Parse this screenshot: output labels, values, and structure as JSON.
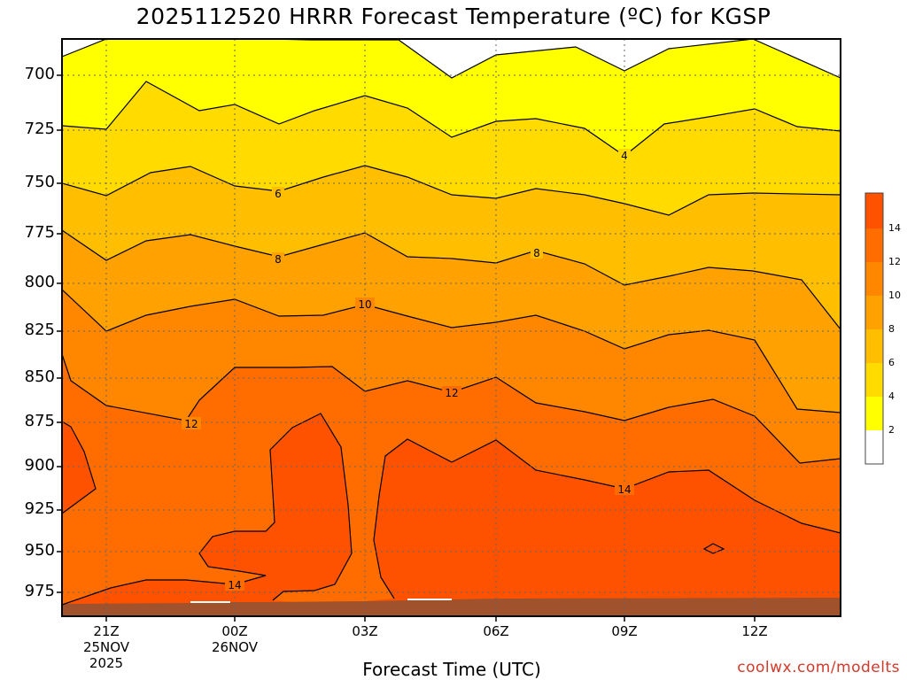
{
  "title": "2025112520 HRRR Forecast Temperature (ºC) for KGSP",
  "credit": "coolwx.com/modelts",
  "chart_data": {
    "type": "heatmap",
    "title": "2025112520 HRRR Forecast Temperature (ºC) for KGSP",
    "xlabel": "Forecast Time (UTC)",
    "ylabel": "",
    "y_ticks": [
      "700",
      "725",
      "750",
      "775",
      "800",
      "825",
      "850",
      "875",
      "900",
      "925",
      "950",
      "975"
    ],
    "x_ticks": [
      {
        "l1": "21Z",
        "l2": "25NOV",
        "l3": "2025"
      },
      {
        "l1": "00Z",
        "l2": "26NOV",
        "l3": ""
      },
      {
        "l1": "03Z",
        "l2": "",
        "l3": ""
      },
      {
        "l1": "06Z",
        "l2": "",
        "l3": ""
      },
      {
        "l1": "09Z",
        "l2": "",
        "l3": ""
      },
      {
        "l1": "12Z",
        "l2": "",
        "l3": ""
      }
    ],
    "grid": true,
    "contour_labels": [
      "4",
      "6",
      "8",
      "8",
      "10",
      "12",
      "12",
      "14",
      "14"
    ],
    "colorbar": {
      "ticks": [
        "2",
        "4",
        "6",
        "8",
        "10",
        "12",
        "14"
      ],
      "colors": [
        "#ffffff",
        "#ffff00",
        "#ffdb00",
        "#ffbf00",
        "#ffa100",
        "#ff8700",
        "#ff6d00",
        "#ff5200"
      ]
    },
    "colors": {
      "fill_2_4": "#ffff00",
      "fill_4_6": "#ffdb00",
      "fill_6_8": "#ffbf00",
      "fill_8_10": "#ffa100",
      "fill_10_12": "#ff8700",
      "fill_12_14": "#ff6d00",
      "fill_14_16": "#ff5200",
      "ground": "#a0522d"
    }
  }
}
